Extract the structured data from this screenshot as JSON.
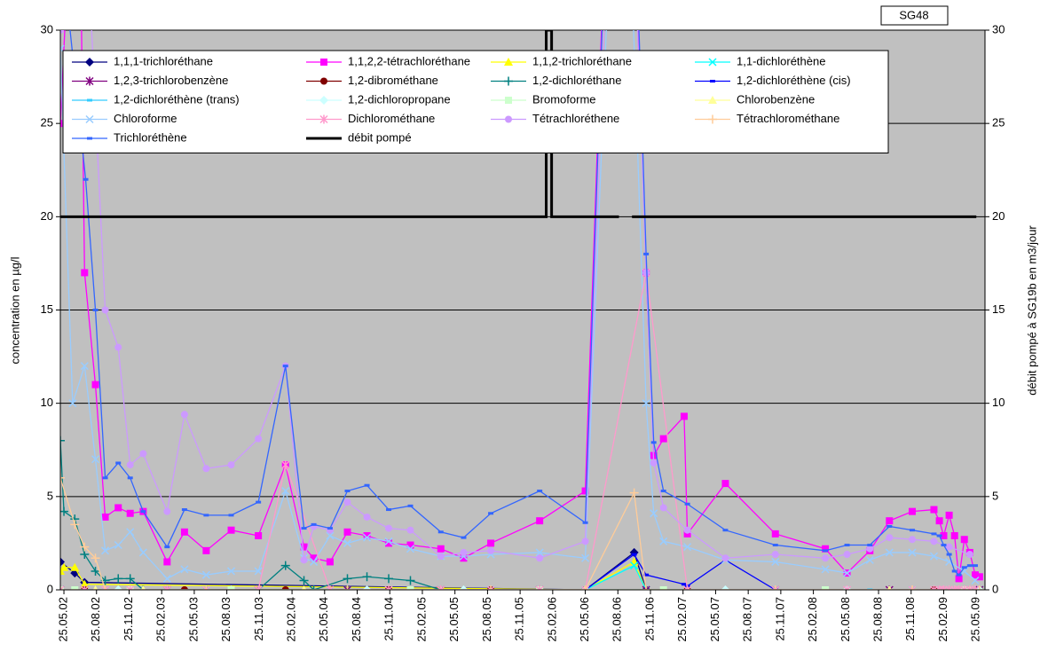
{
  "chart_data": {
    "type": "line",
    "annotation": "SG48",
    "y_label": "concentration en µg/l",
    "y2_label": "débit pompé à SG19b en m3/jour",
    "xlim": [
      -0.33,
      84.8
    ],
    "xticks": [
      {
        "value": 0,
        "label": "25.05.02"
      },
      {
        "value": 3,
        "label": "25.08.02"
      },
      {
        "value": 6,
        "label": "25.11.02"
      },
      {
        "value": 9,
        "label": "25.02.03"
      },
      {
        "value": 12,
        "label": "25.05.03"
      },
      {
        "value": 15,
        "label": "25.08.03"
      },
      {
        "value": 18,
        "label": "25.11.03"
      },
      {
        "value": 21,
        "label": "25.02.04"
      },
      {
        "value": 24,
        "label": "25.05.04"
      },
      {
        "value": 27,
        "label": "25.08.04"
      },
      {
        "value": 30,
        "label": "25.11.04"
      },
      {
        "value": 33,
        "label": "25.02.05"
      },
      {
        "value": 36,
        "label": "25.05.05"
      },
      {
        "value": 39,
        "label": "25.08.05"
      },
      {
        "value": 42,
        "label": "25.11.05"
      },
      {
        "value": 45,
        "label": "25.02.06"
      },
      {
        "value": 48,
        "label": "25.05.06"
      },
      {
        "value": 51,
        "label": "25.08.06"
      },
      {
        "value": 54,
        "label": "25.11.06"
      },
      {
        "value": 57,
        "label": "25.02.07"
      },
      {
        "value": 60,
        "label": "25.05.07"
      },
      {
        "value": 63,
        "label": "25.08.07"
      },
      {
        "value": 66,
        "label": "25.11.07"
      },
      {
        "value": 69,
        "label": "25.02.08"
      },
      {
        "value": 72,
        "label": "25.05.08"
      },
      {
        "value": 75,
        "label": "25.08.08"
      },
      {
        "value": 78,
        "label": "25.11.08"
      },
      {
        "value": 81,
        "label": "25.02.09"
      },
      {
        "value": 84,
        "label": "25.05.09"
      }
    ],
    "ylim": [
      0,
      30
    ],
    "yticks": [
      0,
      5,
      10,
      15,
      20,
      25,
      30
    ],
    "y2lim": [
      0,
      30
    ],
    "y2ticks": [
      0,
      5,
      10,
      15,
      20,
      25,
      30
    ],
    "grid": true,
    "legend": "upper left",
    "series": [
      {
        "name": "1,1,1-trichloréthane",
        "color": "#000080",
        "marker": "diamond",
        "x": [
          -0.33,
          1.0,
          1.9,
          48.0,
          52.5,
          53.6
        ],
        "values": [
          1.5,
          0.9,
          0.4,
          0,
          2.0,
          0
        ]
      },
      {
        "name": "1,1,2,2-tétrachloréthane",
        "color": "#ff00ff",
        "marker": "square",
        "x": [
          -0.33,
          1.3,
          1.9,
          2.9,
          3.8,
          5.0,
          6.1,
          7.3,
          9.5,
          11.1,
          13.1,
          15.4,
          17.9,
          20.4,
          22.1,
          23.0,
          24.5,
          26.1,
          27.9,
          29.9,
          31.9,
          34.7,
          36.8,
          39.3,
          43.8,
          48.0,
          51.3,
          53.6,
          54.3,
          55.2,
          57.1,
          57.4,
          60.9,
          65.5,
          70.1,
          72.1,
          74.2,
          76.0,
          78.1,
          80.1,
          80.6,
          81.0,
          81.5,
          82.0,
          82.4,
          82.9,
          83.4,
          83.9,
          84.3
        ],
        "values": [
          25,
          45,
          17,
          11,
          3.9,
          4.4,
          4.1,
          4.2,
          1.5,
          3.1,
          2.1,
          3.2,
          2.9,
          6.7,
          2.3,
          1.7,
          1.5,
          3.1,
          2.9,
          2.5,
          2.4,
          2.2,
          1.7,
          2.5,
          3.7,
          5.3,
          60,
          17,
          7.2,
          8.1,
          9.3,
          3.0,
          5.7,
          3.0,
          2.2,
          0.9,
          2.1,
          3.7,
          4.2,
          4.3,
          3.7,
          2.9,
          4.0,
          2.9,
          0.6,
          2.7,
          2.0,
          0.8,
          0.7
        ]
      },
      {
        "name": "1,1,2-trichloréthane",
        "color": "#ffff00",
        "marker": "triangle",
        "x": [
          -0.33,
          0,
          1.0,
          1.9,
          48.0,
          52.5,
          53.6
        ],
        "values": [
          1.0,
          1.2,
          1.2,
          0.3,
          0,
          1.5,
          0
        ]
      },
      {
        "name": "1,1-dichloréthène",
        "color": "#00ffff",
        "marker": "x",
        "x": [
          -0.33,
          1.9,
          13.1,
          26.1,
          39.3,
          48.0,
          52.5,
          53.6,
          65.5,
          78.1,
          84.3
        ],
        "values": [
          0,
          0,
          0,
          0,
          0,
          0,
          1.3,
          0,
          0,
          0,
          0
        ]
      },
      {
        "name": "1,2,3-trichlorobenzène",
        "color": "#800080",
        "marker": "star",
        "x": [
          -0.33,
          1.9,
          9.5,
          17.9,
          26.1,
          34.7,
          43.8,
          53.6,
          65.5,
          76.0,
          84.3
        ],
        "values": [
          0,
          0,
          0,
          0,
          0,
          0,
          0,
          0,
          0,
          0,
          0
        ]
      },
      {
        "name": "1,2-dibrométhane",
        "color": "#800000",
        "marker": "circle",
        "x": [
          -0.33,
          1.9,
          11.1,
          20.4,
          29.9,
          39.3,
          48.0,
          57.4,
          70.1,
          80.1,
          84.3
        ],
        "values": [
          0,
          0,
          0,
          0,
          0,
          0,
          0,
          0,
          0,
          0,
          0
        ]
      },
      {
        "name": "1,2-dichloréthane",
        "color": "#008080",
        "marker": "plus",
        "x": [
          -0.33,
          0,
          1.0,
          1.9,
          2.9,
          3.8,
          5.0,
          6.1,
          7.3,
          9.5,
          13.1,
          17.9,
          20.4,
          22.1,
          23.0,
          26.1,
          27.9,
          29.9,
          31.9,
          34.7
        ],
        "values": [
          8,
          4.2,
          3.8,
          1.9,
          1.0,
          0.5,
          0.6,
          0.6,
          0,
          0,
          0,
          0,
          1.3,
          0.5,
          0,
          0.6,
          0.7,
          0.6,
          0.5,
          0
        ]
      },
      {
        "name": "1,2-dichloréthène (cis)",
        "color": "#0000ff",
        "marker": "dash",
        "x": [
          48.0,
          52.5,
          53.6,
          57.1,
          57.4,
          60.9,
          65.5
        ],
        "values": [
          0,
          1.9,
          0.8,
          0.3,
          0.2,
          1.6,
          0
        ]
      },
      {
        "name": "1,2-dichloréthène (trans)",
        "color": "#33ccff",
        "marker": "dash",
        "x": [
          -0.33,
          3.8,
          13.1,
          24.5,
          36.8,
          48.0,
          60.9,
          74.2,
          84.3
        ],
        "values": [
          0,
          0,
          0,
          0,
          0,
          0,
          0,
          0,
          0
        ]
      },
      {
        "name": "1,2-dichloropropane",
        "color": "#ccffff",
        "marker": "diamond",
        "x": [
          -0.33,
          5.0,
          15.4,
          27.9,
          36.8,
          48.0,
          60.9,
          72.1,
          84.3
        ],
        "values": [
          0,
          0,
          0,
          0,
          0,
          0,
          0,
          0,
          0
        ]
      },
      {
        "name": "Bromoforme",
        "color": "#ccffcc",
        "marker": "square",
        "x": [
          -0.33,
          1.0,
          6.1,
          15.4,
          31.9,
          43.8,
          55.2,
          70.1,
          82.9
        ],
        "values": [
          0,
          0,
          0,
          0,
          0,
          0,
          0,
          0,
          0
        ]
      },
      {
        "name": "Chlorobenzène",
        "color": "#ffff99",
        "marker": "triangle",
        "x": [
          -0.33,
          2.9,
          7.3,
          22.1,
          34.7,
          48.0,
          57.4,
          76.0,
          83.4
        ],
        "values": [
          0,
          0,
          0,
          0,
          0,
          0,
          0,
          0,
          0
        ]
      },
      {
        "name": "Chloroforme",
        "color": "#99ccff",
        "marker": "x",
        "x": [
          -0.33,
          0.8,
          1.9,
          2.9,
          3.8,
          5.0,
          6.1,
          7.3,
          9.5,
          11.1,
          13.1,
          15.4,
          17.9,
          20.4,
          22.1,
          23.0,
          24.5,
          26.1,
          27.9,
          29.9,
          31.9,
          34.7,
          36.8,
          39.3,
          43.8,
          48.0,
          51.3,
          53.6,
          54.3,
          55.2,
          57.4,
          60.9,
          65.5,
          70.1,
          72.1,
          74.2,
          76.0,
          78.1,
          80.1,
          81.5,
          82.9,
          83.9
        ],
        "values": [
          29,
          10,
          12,
          7,
          2.1,
          2.4,
          3.1,
          2.0,
          0.6,
          1.1,
          0.8,
          1.0,
          1.0,
          5.3,
          1.7,
          1.5,
          2.9,
          2.5,
          2.8,
          2.6,
          2.2,
          1.8,
          1.8,
          1.9,
          2.0,
          1.7,
          50,
          10,
          4.1,
          2.6,
          2.3,
          1.6,
          1.5,
          1.1,
          0.9,
          1.6,
          2.0,
          2.0,
          1.8,
          1.5,
          1.0,
          0.5
        ]
      },
      {
        "name": "Dichlorométhane",
        "color": "#ff99cc",
        "marker": "star",
        "x": [
          -0.33,
          1.9,
          3.8,
          6.1,
          9.5,
          13.1,
          17.9,
          20.4,
          24.5,
          29.9,
          34.7,
          39.3,
          43.8,
          48.0,
          53.6,
          57.4,
          65.5,
          72.1,
          78.1,
          80.1,
          80.6,
          81.0,
          81.5,
          82.0,
          82.4,
          82.9,
          83.4,
          83.9
        ],
        "values": [
          0,
          0,
          0,
          0,
          0,
          0,
          0,
          6.7,
          0,
          0,
          0,
          0,
          0,
          0,
          17,
          0,
          0,
          0,
          0,
          0,
          0,
          0,
          0,
          0,
          0,
          0,
          0,
          0
        ]
      },
      {
        "name": "Tétrachloréthene",
        "color": "#cc99ff",
        "marker": "circle",
        "x": [
          -0.33,
          1.3,
          3.8,
          5.0,
          6.1,
          7.3,
          9.5,
          11.1,
          13.1,
          15.4,
          17.9,
          20.4,
          22.1,
          23.0,
          24.5,
          26.1,
          27.9,
          29.9,
          31.9,
          34.7,
          36.8,
          39.3,
          43.8,
          48.0,
          51.3,
          53.6,
          54.3,
          55.2,
          57.4,
          60.9,
          65.5,
          70.1,
          72.1,
          74.2,
          76.0,
          78.1,
          80.1,
          81.5,
          83.4
        ],
        "values": [
          30,
          45,
          15,
          13,
          6.7,
          7.3,
          4.2,
          9.4,
          6.5,
          6.7,
          8.1,
          12,
          1.6,
          3.4,
          3.2,
          4.7,
          3.9,
          3.3,
          3.2,
          1.8,
          2.0,
          2.1,
          1.7,
          2.6,
          55,
          17,
          6.8,
          4.4,
          3.2,
          1.7,
          1.9,
          1.7,
          1.9,
          2.2,
          2.8,
          2.7,
          2.6,
          2.3,
          1.9
        ]
      },
      {
        "name": "Tétrachlorométhane",
        "color": "#ffcc99",
        "marker": "plus",
        "x": [
          -0.33,
          1.0,
          1.9,
          2.9,
          3.8,
          13.1,
          26.1,
          39.3,
          48.0,
          52.5,
          53.6,
          65.5,
          78.1,
          84.3
        ],
        "values": [
          6,
          3.5,
          2.3,
          1.7,
          0,
          0,
          0,
          0,
          0,
          5.2,
          0,
          0,
          0,
          0
        ]
      },
      {
        "name": "Trichloréthène",
        "color": "#3366ff",
        "marker": "dash",
        "x": [
          -0.33,
          2.0,
          2.9,
          3.8,
          5.0,
          6.1,
          7.3,
          9.5,
          11.1,
          13.1,
          15.4,
          17.9,
          20.4,
          22.1,
          23.0,
          24.5,
          26.1,
          27.9,
          29.9,
          31.9,
          34.7,
          36.8,
          39.3,
          43.8,
          48.0,
          51.3,
          53.6,
          54.3,
          55.2,
          57.4,
          60.9,
          65.5,
          70.1,
          72.1,
          74.2,
          76.0,
          78.1,
          80.1,
          80.6,
          81.0,
          81.5,
          82.0,
          82.4,
          82.9,
          83.4,
          83.9
        ],
        "values": [
          35,
          22,
          15,
          6,
          6.8,
          6.0,
          4.2,
          2.3,
          4.3,
          4.0,
          4.0,
          4.7,
          12,
          3.3,
          3.5,
          3.3,
          5.3,
          5.6,
          4.3,
          4.5,
          3.1,
          2.8,
          4.1,
          5.3,
          3.6,
          60,
          18,
          7.9,
          5.3,
          4.6,
          3.2,
          2.4,
          2.1,
          2.4,
          2.4,
          3.4,
          3.2,
          3.0,
          2.9,
          2.4,
          1.9,
          1.0,
          0.8,
          1.2,
          1.3,
          1.3
        ]
      },
      {
        "name": "débit pompé",
        "color": "#000000",
        "marker": "none",
        "axis": "y2",
        "width": 3,
        "x": [
          -0.33,
          44.4,
          44.4,
          44.9,
          44.9,
          51.1,
          null,
          52.3,
          84.0
        ],
        "values": [
          20,
          20,
          30,
          30,
          20,
          20,
          null,
          20,
          20
        ]
      }
    ]
  }
}
